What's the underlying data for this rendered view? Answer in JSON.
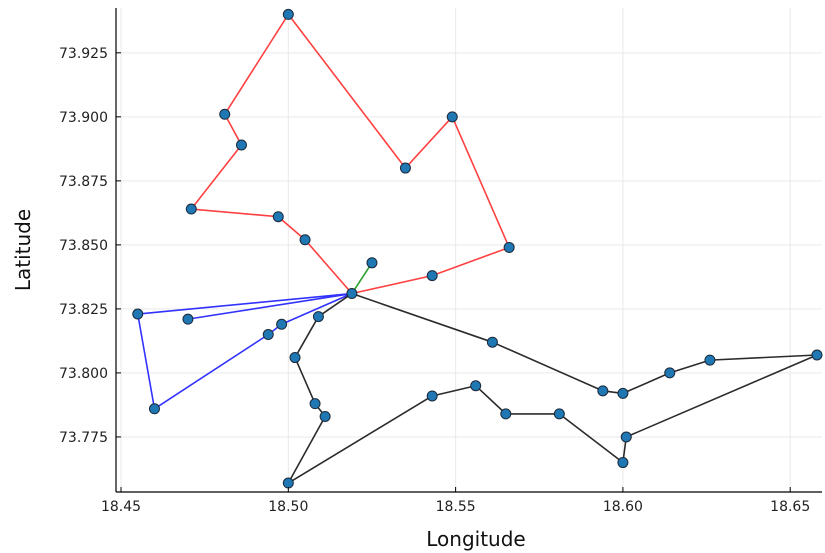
{
  "chart_data": {
    "type": "scatter",
    "xlabel": "Longitude",
    "ylabel": "Latitude",
    "xlim": [
      18.4485,
      18.6595
    ],
    "ylim": [
      73.7535,
      73.9425
    ],
    "xticks": [
      18.45,
      18.5,
      18.55,
      18.6,
      18.65
    ],
    "xtick_labels": [
      "18.45",
      "18.50",
      "18.55",
      "18.60",
      "18.65"
    ],
    "yticks": [
      73.775,
      73.8,
      73.825,
      73.85,
      73.875,
      73.9,
      73.925
    ],
    "ytick_labels": [
      "73.775",
      "73.800",
      "73.825",
      "73.850",
      "73.875",
      "73.900",
      "73.925"
    ],
    "grid": true,
    "legend": "none",
    "point_color": "#1f77b4",
    "series": [
      {
        "color": "#ff4040",
        "points": [
          {
            "x": 18.519,
            "y": 73.831
          },
          {
            "x": 18.505,
            "y": 73.852
          },
          {
            "x": 18.497,
            "y": 73.861
          },
          {
            "x": 18.471,
            "y": 73.864
          },
          {
            "x": 18.486,
            "y": 73.889
          },
          {
            "x": 18.481,
            "y": 73.901
          },
          {
            "x": 18.5,
            "y": 73.94
          },
          {
            "x": 18.535,
            "y": 73.88
          },
          {
            "x": 18.549,
            "y": 73.9
          },
          {
            "x": 18.566,
            "y": 73.849
          },
          {
            "x": 18.543,
            "y": 73.838
          },
          {
            "x": 18.519,
            "y": 73.831
          }
        ]
      },
      {
        "color": "#3232ff",
        "points": [
          {
            "x": 18.519,
            "y": 73.831
          },
          {
            "x": 18.455,
            "y": 73.823
          },
          {
            "x": 18.46,
            "y": 73.786
          },
          {
            "x": 18.494,
            "y": 73.815
          },
          {
            "x": 18.498,
            "y": 73.819
          },
          {
            "x": 18.519,
            "y": 73.831
          },
          {
            "x": 18.47,
            "y": 73.821
          }
        ]
      },
      {
        "color": "#2ca02c",
        "points": [
          {
            "x": 18.519,
            "y": 73.831
          },
          {
            "x": 18.525,
            "y": 73.843
          }
        ]
      },
      {
        "color": "#2b2b2b",
        "points": [
          {
            "x": 18.519,
            "y": 73.831
          },
          {
            "x": 18.509,
            "y": 73.822
          },
          {
            "x": 18.502,
            "y": 73.806
          },
          {
            "x": 18.508,
            "y": 73.788
          },
          {
            "x": 18.511,
            "y": 73.783
          },
          {
            "x": 18.5,
            "y": 73.757
          },
          {
            "x": 18.543,
            "y": 73.791
          },
          {
            "x": 18.556,
            "y": 73.795
          },
          {
            "x": 18.565,
            "y": 73.784
          },
          {
            "x": 18.581,
            "y": 73.784
          },
          {
            "x": 18.6,
            "y": 73.765
          },
          {
            "x": 18.601,
            "y": 73.775
          },
          {
            "x": 18.658,
            "y": 73.807
          },
          {
            "x": 18.626,
            "y": 73.805
          },
          {
            "x": 18.614,
            "y": 73.8
          },
          {
            "x": 18.6,
            "y": 73.792
          },
          {
            "x": 18.594,
            "y": 73.793
          },
          {
            "x": 18.561,
            "y": 73.812
          },
          {
            "x": 18.519,
            "y": 73.831
          }
        ]
      }
    ]
  }
}
